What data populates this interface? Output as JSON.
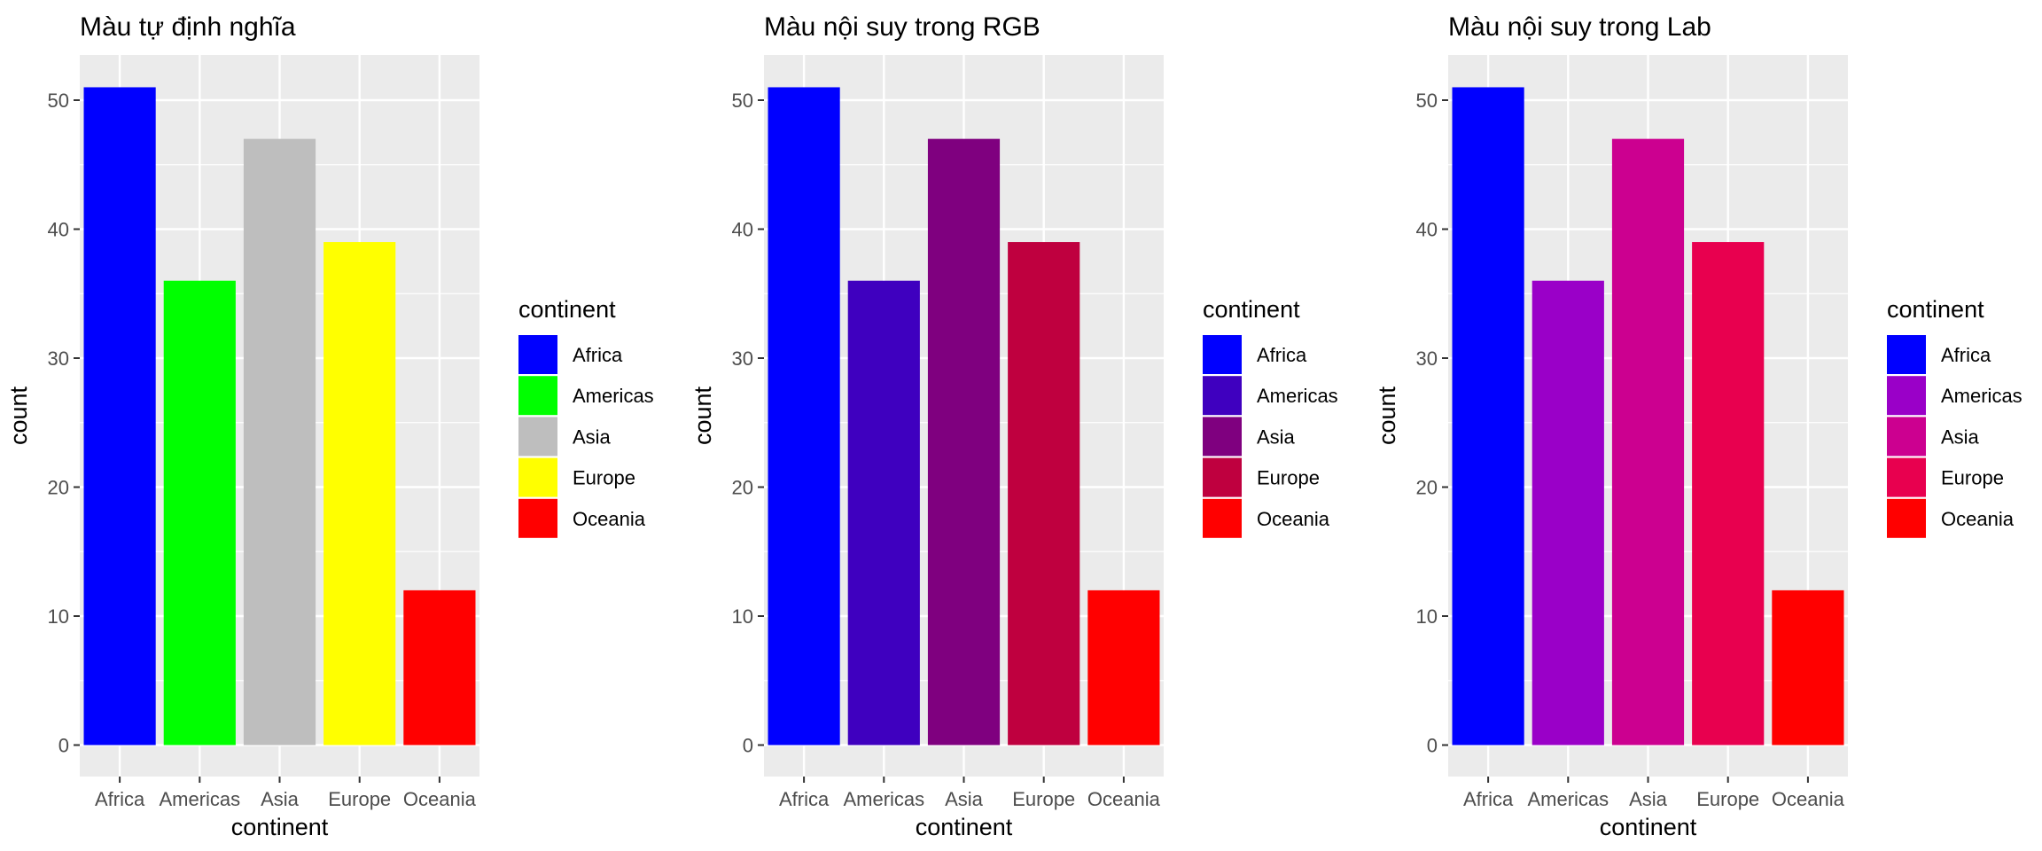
{
  "chart_data": [
    {
      "type": "bar",
      "title": "Màu tự định nghĩa",
      "xlabel": "continent",
      "ylabel": "count",
      "categories": [
        "Africa",
        "Americas",
        "Asia",
        "Europe",
        "Oceania"
      ],
      "values": [
        51,
        36,
        47,
        39,
        12
      ],
      "colors": [
        "#0000FF",
        "#00FF00",
        "#BEBEBE",
        "#FFFF00",
        "#FF0000"
      ],
      "ylim": [
        0,
        53
      ],
      "yticks": [
        0,
        10,
        20,
        30,
        40,
        50
      ],
      "grid": true,
      "legend": {
        "title": "continent",
        "position": "right",
        "entries": [
          "Africa",
          "Americas",
          "Asia",
          "Europe",
          "Oceania"
        ]
      }
    },
    {
      "type": "bar",
      "title": "Màu nội suy trong RGB",
      "xlabel": "continent",
      "ylabel": "count",
      "categories": [
        "Africa",
        "Americas",
        "Asia",
        "Europe",
        "Oceania"
      ],
      "values": [
        51,
        36,
        47,
        39,
        12
      ],
      "colors": [
        "#0000FF",
        "#3F00BF",
        "#7F007F",
        "#BF003F",
        "#FF0000"
      ],
      "ylim": [
        0,
        53
      ],
      "yticks": [
        0,
        10,
        20,
        30,
        40,
        50
      ],
      "grid": true,
      "legend": {
        "title": "continent",
        "position": "right",
        "entries": [
          "Africa",
          "Americas",
          "Asia",
          "Europe",
          "Oceania"
        ]
      }
    },
    {
      "type": "bar",
      "title": "Màu nội suy trong Lab",
      "xlabel": "continent",
      "ylabel": "count",
      "categories": [
        "Africa",
        "Americas",
        "Asia",
        "Europe",
        "Oceania"
      ],
      "values": [
        51,
        36,
        47,
        39,
        12
      ],
      "colors": [
        "#0000FF",
        "#9A00C8",
        "#CC0090",
        "#E8004F",
        "#FF0000"
      ],
      "ylim": [
        0,
        53
      ],
      "yticks": [
        0,
        10,
        20,
        30,
        40,
        50
      ],
      "grid": true,
      "legend": {
        "title": "continent",
        "position": "right",
        "entries": [
          "Africa",
          "Americas",
          "Asia",
          "Europe",
          "Oceania"
        ]
      }
    }
  ],
  "theme": {
    "panel_background": "#EBEBEB",
    "grid_color": "#FFFFFF",
    "tick_label_color": "#4D4D4D",
    "tick_color": "#333333"
  }
}
